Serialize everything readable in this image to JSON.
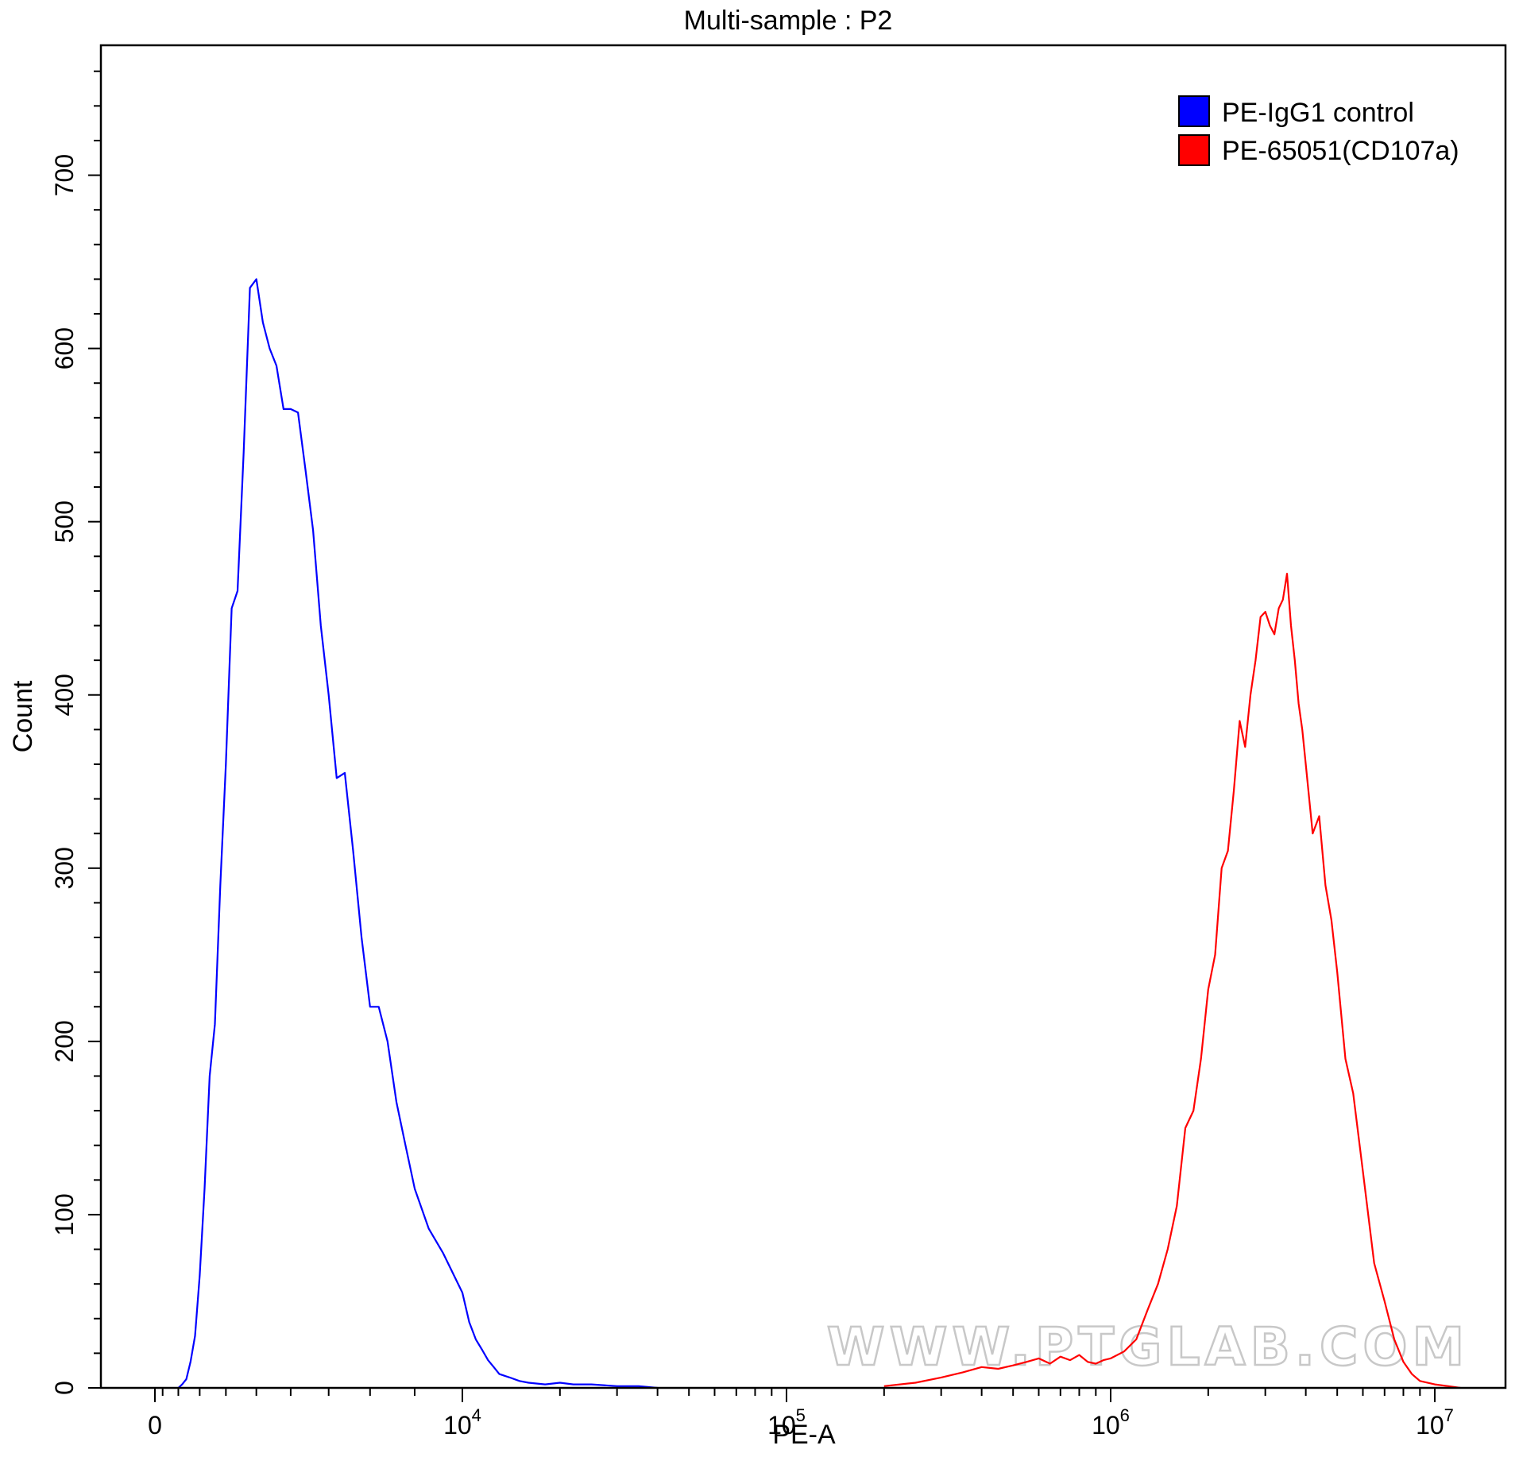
{
  "chart_data": {
    "type": "line",
    "title": "Multi-sample : P2",
    "xlabel": "PE-A",
    "ylabel": "Count",
    "x_scale": "biexponential",
    "ylim": [
      0,
      775
    ],
    "y_ticks": [
      0,
      100,
      200,
      300,
      400,
      500,
      600,
      700
    ],
    "y_tick_labels": [
      "0",
      "100",
      "200",
      "300",
      "400",
      "500",
      "600",
      "700"
    ],
    "x_ticks": [
      {
        "value": 0,
        "base": "0",
        "exp": ""
      },
      {
        "value": 10000,
        "base": "10",
        "exp": "4"
      },
      {
        "value": 100000,
        "base": "10",
        "exp": "5"
      },
      {
        "value": 1000000,
        "base": "10",
        "exp": "6"
      },
      {
        "value": 10000000,
        "base": "10",
        "exp": "7"
      }
    ],
    "legend": {
      "position": "top-right",
      "entries": [
        {
          "label": "PE-IgG1 control",
          "color": "#0000ff"
        },
        {
          "label": "PE-65051(CD107a)",
          "color": "#ff0000"
        }
      ]
    },
    "series": [
      {
        "name": "PE-IgG1 control",
        "color": "#0000ff",
        "x": [
          2000,
          2200,
          2400,
          2600,
          2800,
          3000,
          3200,
          3400,
          3600,
          3800,
          4000,
          4200,
          4400,
          4600,
          4800,
          5000,
          5200,
          5400,
          5600,
          5800,
          6000,
          6200,
          6400,
          6600,
          6800,
          7000,
          7200,
          7400,
          7600,
          7800,
          8000,
          8200,
          8400,
          8600,
          8800,
          9000,
          9300,
          9600,
          10000,
          10500,
          11000,
          11500,
          12000,
          12500,
          13000,
          14000,
          15000,
          16000,
          18000,
          20000,
          22000,
          25000,
          30000,
          35000,
          40000
        ],
        "y": [
          0,
          2,
          5,
          15,
          30,
          65,
          115,
          180,
          210,
          290,
          360,
          450,
          460,
          540,
          635,
          640,
          615,
          600,
          590,
          565,
          565,
          563,
          530,
          495,
          440,
          400,
          352,
          355,
          310,
          260,
          220,
          220,
          200,
          165,
          140,
          115,
          92,
          78,
          55,
          38,
          28,
          22,
          16,
          12,
          8,
          6,
          4,
          3,
          2,
          3,
          2,
          2,
          1,
          1,
          0
        ]
      },
      {
        "name": "PE-65051(CD107a)",
        "color": "#ff0000",
        "x": [
          200000,
          250000,
          300000,
          350000,
          400000,
          450000,
          500000,
          550000,
          600000,
          650000,
          700000,
          750000,
          800000,
          850000,
          900000,
          950000,
          1000000,
          1100000,
          1200000,
          1300000,
          1400000,
          1500000,
          1600000,
          1700000,
          1800000,
          1900000,
          2000000,
          2100000,
          2200000,
          2300000,
          2400000,
          2500000,
          2600000,
          2700000,
          2800000,
          2900000,
          3000000,
          3100000,
          3200000,
          3300000,
          3400000,
          3500000,
          3600000,
          3700000,
          3800000,
          3900000,
          4000000,
          4200000,
          4400000,
          4600000,
          4800000,
          5000000,
          5300000,
          5600000,
          6000000,
          6500000,
          7000000,
          7500000,
          8000000,
          8500000,
          9000000,
          10000000,
          11000000,
          12000000
        ],
        "y": [
          1,
          3,
          6,
          9,
          12,
          11,
          13,
          15,
          17,
          14,
          18,
          16,
          19,
          15,
          14,
          16,
          17,
          21,
          28,
          45,
          60,
          80,
          105,
          150,
          160,
          190,
          230,
          250,
          300,
          310,
          345,
          385,
          370,
          400,
          420,
          445,
          448,
          440,
          435,
          450,
          455,
          470,
          440,
          420,
          395,
          380,
          360,
          320,
          330,
          290,
          270,
          240,
          190,
          170,
          125,
          72,
          50,
          28,
          15,
          8,
          4,
          2,
          1,
          0
        ]
      }
    ],
    "watermark": "WWW.PTGLAB.COM"
  }
}
